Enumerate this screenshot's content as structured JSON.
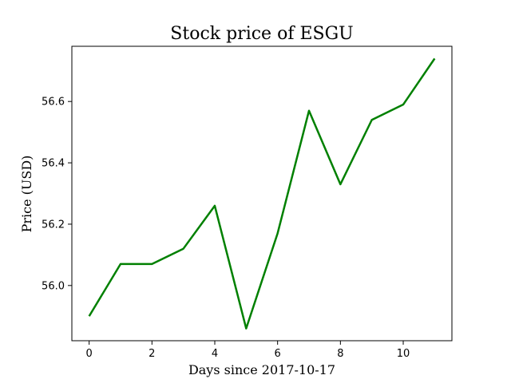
{
  "chart_data": {
    "type": "line",
    "title": "Stock price of ESGU",
    "xlabel": "Days since 2017-10-17",
    "ylabel": "Price (USD)",
    "x": [
      0,
      1,
      2,
      3,
      4,
      5,
      6,
      7,
      8,
      9,
      10,
      11
    ],
    "series": [
      {
        "values": [
          55.9,
          56.07,
          56.07,
          56.12,
          56.26,
          55.86,
          56.17,
          56.57,
          56.33,
          56.54,
          56.59,
          56.74
        ],
        "color": "#008000"
      }
    ],
    "xlim": [
      -0.55,
      11.55
    ],
    "ylim": [
      55.82,
      56.78
    ],
    "xticks": [
      0,
      2,
      4,
      6,
      8,
      10
    ],
    "xtick_labels": [
      "0",
      "2",
      "4",
      "6",
      "8",
      "10"
    ],
    "yticks": [
      56.0,
      56.2,
      56.4,
      56.6
    ],
    "ytick_labels": [
      "56.0",
      "56.2",
      "56.4",
      "56.6"
    ],
    "grid": false,
    "legend": "none"
  }
}
